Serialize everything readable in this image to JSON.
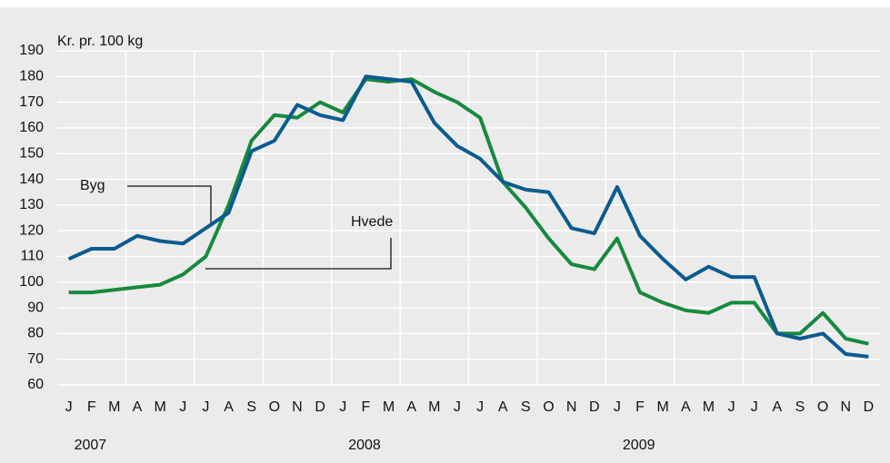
{
  "chart_data": {
    "type": "line",
    "y_label": "Kr. pr. 100 kg",
    "categories": [
      "J",
      "F",
      "M",
      "A",
      "M",
      "J",
      "J",
      "A",
      "S",
      "O",
      "N",
      "D",
      "J",
      "F",
      "M",
      "A",
      "M",
      "J",
      "J",
      "A",
      "S",
      "O",
      "N",
      "D",
      "J",
      "F",
      "M",
      "A",
      "M",
      "J",
      "J",
      "A",
      "S",
      "O",
      "N",
      "D"
    ],
    "years": [
      "2007",
      "2008",
      "2009"
    ],
    "series": [
      {
        "name": "Byg",
        "color": "#0b5b8f",
        "values": [
          109,
          113,
          113,
          118,
          116,
          115,
          121,
          127,
          151,
          155,
          169,
          165,
          163,
          180,
          179,
          178,
          162,
          153,
          148,
          139,
          136,
          135,
          121,
          119,
          137,
          118,
          109,
          101,
          106,
          102,
          102,
          80,
          78,
          80,
          72,
          71
        ]
      },
      {
        "name": "Hvede",
        "color": "#17893e",
        "values": [
          96,
          96,
          97,
          98,
          99,
          103,
          110,
          130,
          155,
          165,
          164,
          170,
          166,
          179,
          178,
          179,
          174,
          170,
          164,
          139,
          129,
          117,
          107,
          105,
          117,
          96,
          92,
          89,
          88,
          92,
          92,
          80,
          80,
          88,
          78,
          76
        ]
      }
    ],
    "ylim": [
      60,
      190
    ],
    "yticks": [
      60,
      70,
      80,
      90,
      100,
      110,
      120,
      130,
      140,
      150,
      160,
      170,
      180,
      190
    ],
    "grid": true
  }
}
